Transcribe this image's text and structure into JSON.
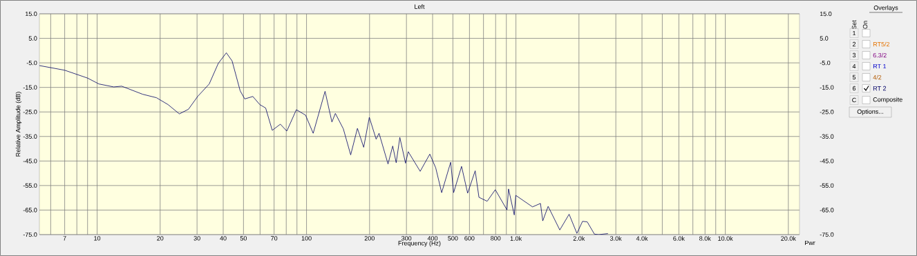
{
  "chart_data": {
    "type": "line",
    "title": "Left",
    "xlabel": "Frequency (Hz)",
    "ylabel": "Relative Amplitude (dB)",
    "log": "x",
    "grid": true,
    "legend": "right",
    "line_style": "solid",
    "xlim": [
      5.3,
      22600
    ],
    "ylim": [
      -75,
      15
    ],
    "y2lim": [
      -75,
      15
    ],
    "xticks": [
      {
        "value": 6,
        "label": null
      },
      7,
      {
        "value": 8,
        "label": null
      },
      {
        "value": 9,
        "label": null
      },
      10,
      20,
      30,
      40,
      50,
      {
        "value": 60,
        "label": null
      },
      70,
      {
        "value": 80,
        "label": null
      },
      {
        "value": 90,
        "label": null
      },
      100,
      200,
      300,
      400,
      500,
      600,
      {
        "value": 700,
        "label": null
      },
      800,
      {
        "value": 900,
        "label": null
      },
      {
        "value": 1000,
        "label": "1.0k"
      },
      {
        "value": 2000,
        "label": "2.0k"
      },
      {
        "value": 3000,
        "label": "3.0k"
      },
      {
        "value": 4000,
        "label": "4.0k"
      },
      {
        "value": 5000,
        "label": null
      },
      {
        "value": 6000,
        "label": "6.0k"
      },
      {
        "value": 7000,
        "label": null
      },
      {
        "value": 8000,
        "label": "8.0k"
      },
      {
        "value": 9000,
        "label": null
      },
      {
        "value": 10000,
        "label": "10.0k"
      },
      {
        "value": 20000,
        "label": "20.0k"
      }
    ],
    "yticks": [
      {
        "value": -75,
        "label": "-75.0"
      },
      {
        "value": -65,
        "label": "-65.0"
      },
      {
        "value": -55,
        "label": "-55.0"
      },
      {
        "value": -45,
        "label": "-45.0"
      },
      {
        "value": -35,
        "label": "-35.0"
      },
      {
        "value": -25,
        "label": "-25.0"
      },
      {
        "value": -15,
        "label": "-15.0"
      },
      {
        "value": -5,
        "label": "-5.0"
      },
      {
        "value": 5,
        "label": "5.0"
      },
      {
        "value": 15,
        "label": "15.0"
      }
    ],
    "y2ticks": [
      {
        "value": -75,
        "label": "-75.0"
      },
      {
        "value": -65,
        "label": "-65.0"
      },
      {
        "value": -55,
        "label": "-55.0"
      },
      {
        "value": -45,
        "label": "-45.0"
      },
      {
        "value": -35,
        "label": "-35.0"
      },
      {
        "value": -25,
        "label": "-25.0"
      },
      {
        "value": -15,
        "label": "-15.0"
      },
      {
        "value": -5,
        "label": "-5.0"
      },
      {
        "value": 5,
        "label": "5.0"
      },
      {
        "value": 15,
        "label": "15.0"
      }
    ],
    "x": [
      5.3,
      7.0,
      9.0,
      10.2,
      12.0,
      13.1,
      16.5,
      19.2,
      21.8,
      24.7,
      27.3,
      30.2,
      34.3,
      37.9,
      41.4,
      44.1,
      48.2,
      50.7,
      55.4,
      59.8,
      63.8,
      68.6,
      75,
      80.5,
      89.4,
      98.9,
      107.6,
      122.6,
      132.2,
      137.3,
      149.9,
      162.5,
      175,
      187.5,
      199.5,
      215,
      222,
      245,
      258,
      268,
      279,
      297,
      306,
      349,
      388,
      414,
      442,
      488,
      504,
      550,
      588,
      639,
      666,
      729,
      797,
      906,
      922,
      982,
      998,
      1200,
      1310,
      1343,
      1425,
      1620,
      1795,
      1955,
      2080,
      2190,
      2370,
      2480,
      2750
    ],
    "series": [
      {
        "name": "RT 2",
        "color": "#000066",
        "values": [
          -6.1,
          -8.0,
          -11.2,
          -13.6,
          -14.8,
          -14.5,
          -17.8,
          -19.2,
          -22.0,
          -25.8,
          -23.9,
          -18.7,
          -13.6,
          -5.2,
          -0.9,
          -4.2,
          -16.4,
          -19.7,
          -18.7,
          -22.0,
          -23.4,
          -32.5,
          -30.0,
          -32.8,
          -24.1,
          -26.3,
          -33.7,
          -16.6,
          -29.1,
          -25.6,
          -31.9,
          -42.5,
          -31.7,
          -39.4,
          -27.2,
          -36.1,
          -33.7,
          -46.2,
          -38.9,
          -45.7,
          -35.4,
          -45.9,
          -41.2,
          -49.2,
          -42.2,
          -47.8,
          -57.9,
          -45.5,
          -57.9,
          -47.2,
          -58.1,
          -49.0,
          -59.8,
          -61.4,
          -56.7,
          -64.9,
          -56.4,
          -67.0,
          -59.0,
          -63.7,
          -62.3,
          -69.4,
          -63.5,
          -73.1,
          -66.7,
          -74.5,
          -69.6,
          -69.8,
          -74.8,
          -75.0,
          -74.6
        ]
      }
    ],
    "annotations": [
      "Overlays",
      "Set",
      "On",
      "1",
      "2",
      "3",
      "4",
      "5",
      "6",
      "C",
      "RT5/2",
      "6.3/2",
      "RT 1",
      "4/2",
      "Composite",
      "Options...",
      "Pwr"
    ]
  }
}
